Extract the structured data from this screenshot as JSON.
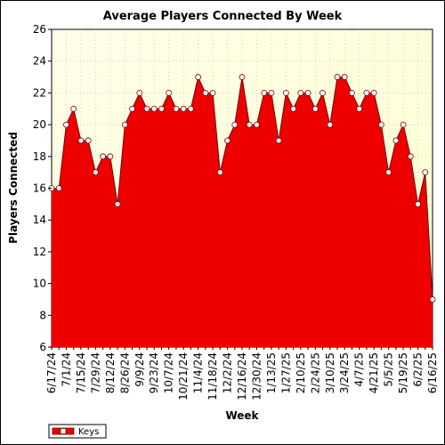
{
  "colors": {
    "plot_bg_top": "#fefeea",
    "plot_bg_bottom": "#ffffd0",
    "fill": "#ee0000",
    "line": "#770000",
    "marker_fill": "#ffffff",
    "grid": "#b8b8b8"
  },
  "chart_data": {
    "type": "area",
    "title": "Average Players Connected By Week",
    "xlabel": "Week",
    "ylabel": "Players Connected",
    "ylim": [
      6,
      26
    ],
    "yticks": [
      6,
      8,
      10,
      12,
      14,
      16,
      18,
      20,
      22,
      24,
      26
    ],
    "grid": true,
    "legend_position": "bottom-left",
    "series": [
      {
        "name": "Keys",
        "x": [
          "6/17/24",
          "6/24/24",
          "7/1/24",
          "7/8/24",
          "7/15/24",
          "7/22/24",
          "7/29/24",
          "8/5/24",
          "8/12/24",
          "8/19/24",
          "8/26/24",
          "9/2/24",
          "9/9/24",
          "9/16/24",
          "9/23/24",
          "9/30/24",
          "10/7/24",
          "10/14/24",
          "10/21/24",
          "10/28/24",
          "11/4/24",
          "11/11/24",
          "11/18/24",
          "11/25/24",
          "12/2/24",
          "12/9/24",
          "12/16/24",
          "12/23/24",
          "12/30/24",
          "1/6/25",
          "1/13/25",
          "1/20/25",
          "1/27/25",
          "2/3/25",
          "2/10/25",
          "2/17/25",
          "2/24/25",
          "3/3/25",
          "3/10/25",
          "3/17/25",
          "3/24/25",
          "3/31/25",
          "4/7/25",
          "4/14/25",
          "4/21/25",
          "4/28/25",
          "5/5/25",
          "5/12/25",
          "5/19/25",
          "5/26/25",
          "6/2/25",
          "6/9/25",
          "6/16/25"
        ],
        "values": [
          16,
          16,
          20,
          21,
          19,
          19,
          17,
          18,
          18,
          15,
          20,
          21,
          22,
          21,
          21,
          21,
          22,
          21,
          21,
          21,
          23,
          22,
          22,
          17,
          19,
          20,
          23,
          20,
          20,
          22,
          22,
          19,
          22,
          21,
          22,
          22,
          21,
          22,
          20,
          23,
          23,
          22,
          21,
          22,
          22,
          20,
          17,
          19,
          20,
          18,
          15,
          17,
          9
        ]
      }
    ],
    "xtick_labels": [
      "6/17/24",
      "7/1/24",
      "7/15/24",
      "7/29/24",
      "8/12/24",
      "8/26/24",
      "9/9/24",
      "9/23/24",
      "10/7/24",
      "10/21/24",
      "11/4/24",
      "11/18/24",
      "12/2/24",
      "12/16/24",
      "12/30/24",
      "1/13/25",
      "1/27/25",
      "2/10/25",
      "2/24/25",
      "3/10/25",
      "3/24/25",
      "4/7/25",
      "4/21/25",
      "5/5/25",
      "5/19/25",
      "6/2/25",
      "6/16/25"
    ]
  }
}
